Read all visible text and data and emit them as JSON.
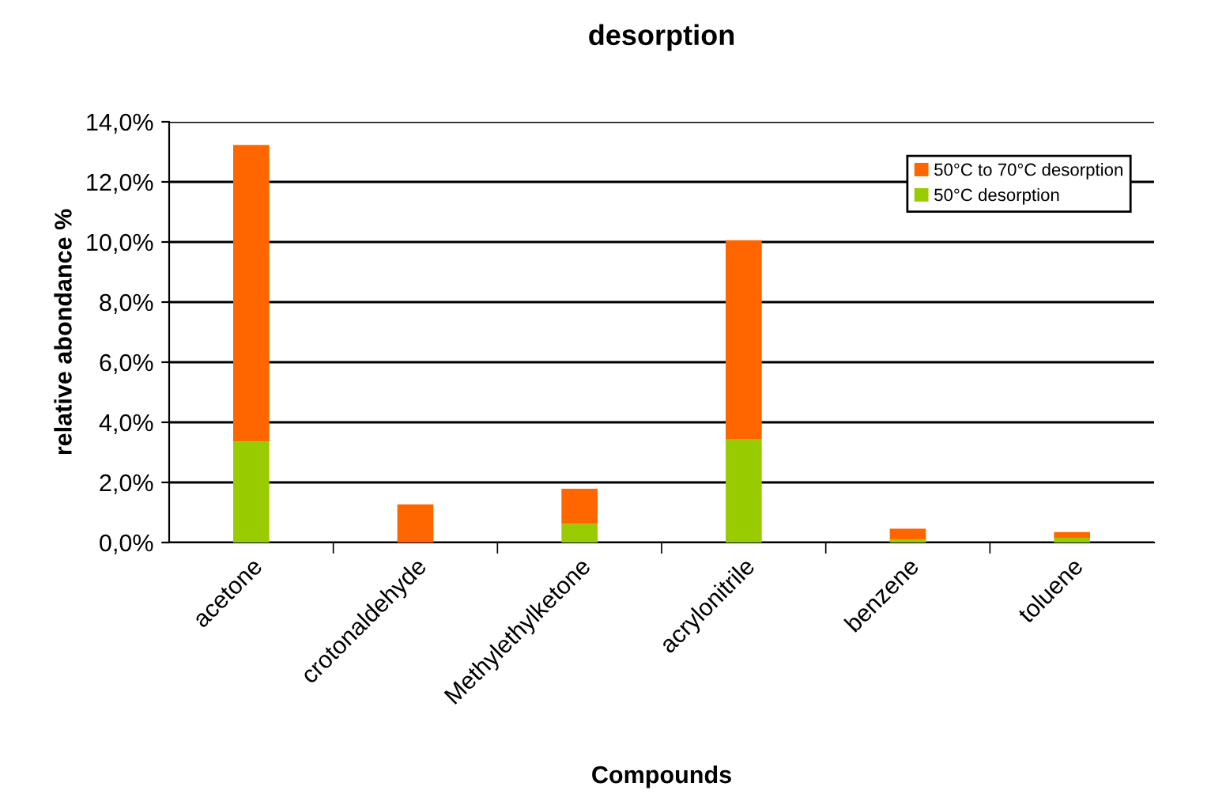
{
  "chart_data": {
    "type": "bar",
    "title": "desorption",
    "xlabel": "Compounds",
    "ylabel": "relative abondance %",
    "categories": [
      "acetone",
      "crotonaldehyde",
      "Methylethylketone",
      "acrylonitrile",
      "benzene",
      "toluene"
    ],
    "stacked": true,
    "series": [
      {
        "name": "50°C desorption",
        "color": "#99cc00",
        "values": [
          3.36,
          0.0,
          0.62,
          3.43,
          0.09,
          0.16
        ]
      },
      {
        "name": "50°C to 70°C desorption",
        "color": "#ff6600",
        "values": [
          9.87,
          1.27,
          1.17,
          6.63,
          0.37,
          0.19
        ]
      }
    ],
    "ylim": [
      0,
      14
    ],
    "yticks": [
      {
        "value": 0,
        "label": "0,0%"
      },
      {
        "value": 2,
        "label": "2,0%"
      },
      {
        "value": 4,
        "label": "4,0%"
      },
      {
        "value": 6,
        "label": "6,0%"
      },
      {
        "value": 8,
        "label": "8,0%"
      },
      {
        "value": 10,
        "label": "10,0%"
      },
      {
        "value": 12,
        "label": "12,0%"
      },
      {
        "value": 14,
        "label": "14,0%"
      }
    ],
    "grid": "y",
    "legend": "top right"
  }
}
